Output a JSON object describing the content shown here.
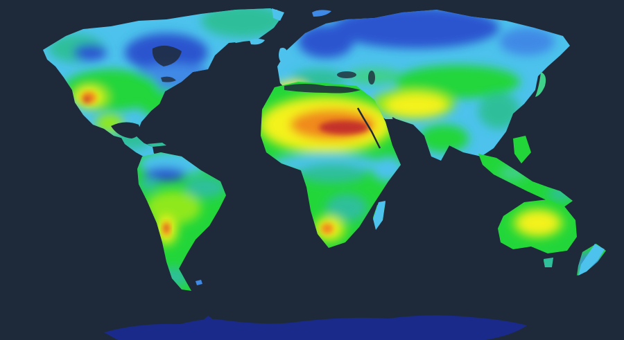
{
  "map": {
    "title": "",
    "legend": [],
    "colors": {
      "background": "#1e2a3a",
      "ocean": "#1e2a3a",
      "antarctica": "#1a2a8a",
      "deep_blue": "#2a55cf",
      "blue": "#3f8ae6",
      "light_blue": "#4cc2ec",
      "teal": "#2fbf9a",
      "mint": "#3fd08a",
      "green": "#22d63a",
      "lime": "#8fe81e",
      "yellow": "#f4f21c",
      "orange": "#f08a1c",
      "red_orange": "#e05a1e",
      "dark_red": "#c4302a"
    }
  }
}
